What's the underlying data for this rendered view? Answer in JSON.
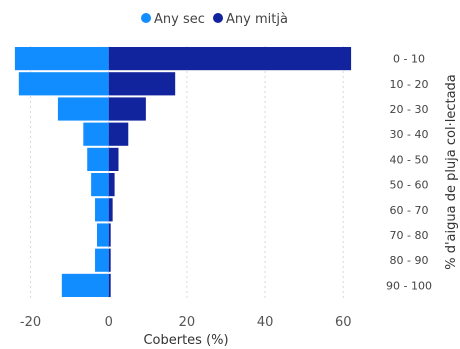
{
  "chart_data": {
    "type": "bar",
    "orientation": "horizontal",
    "stacked": "diverging",
    "categories": [
      "0 - 10",
      "10 - 20",
      "20 - 30",
      "30 - 40",
      "40 - 50",
      "50 - 60",
      "60 - 70",
      "70 - 80",
      "80 - 90",
      "90 - 100"
    ],
    "series": [
      {
        "name": "Any sec",
        "color": "#118dff",
        "values": [
          -24,
          -23,
          -13,
          -6.5,
          -5.5,
          -4.5,
          -3.5,
          -3,
          -3.5,
          -12
        ]
      },
      {
        "name": "Any mitjà",
        "color": "#12239e",
        "values": [
          62,
          17,
          9.5,
          5,
          2.5,
          1.5,
          1,
          0.5,
          0.5,
          0.5
        ]
      }
    ],
    "xlabel": "Cobertes (%)",
    "ylabel": "% d'aigua de pluja col·lectada",
    "xlim": [
      -25,
      63
    ],
    "xticks": [
      -20,
      0,
      20,
      40,
      60
    ],
    "grid": true,
    "legend": "top-center"
  }
}
